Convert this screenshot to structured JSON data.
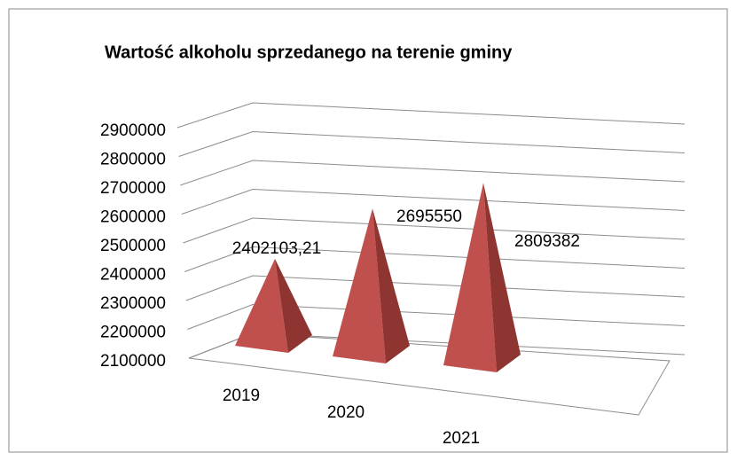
{
  "chart_data": {
    "type": "pyramid3d",
    "title": "Wartość alkoholu sprzedanego na terenie gminy",
    "categories": [
      "2019",
      "2020",
      "2021"
    ],
    "values": [
      2402103.21,
      2695550,
      2809382
    ],
    "value_labels": [
      "2402103,21",
      "2695550",
      "2809382"
    ],
    "color": "#c0504d",
    "ylim": [
      2100000,
      2900000
    ],
    "yticks": [
      2100000,
      2200000,
      2300000,
      2400000,
      2500000,
      2600000,
      2700000,
      2800000,
      2900000
    ],
    "grid": true
  }
}
